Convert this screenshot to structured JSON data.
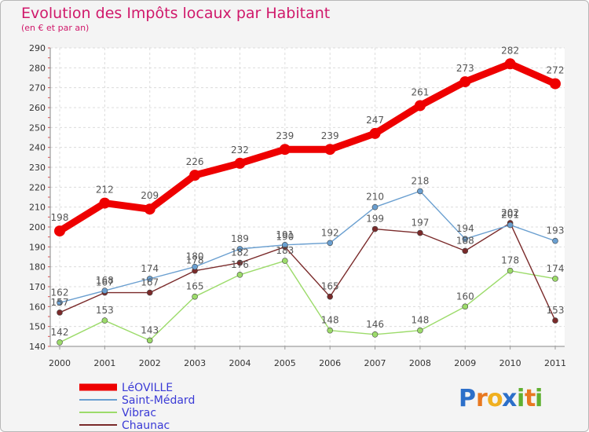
{
  "chart_data": {
    "type": "line",
    "title": "Evolution des Impôts locaux par Habitant",
    "subtitle": "(en € et par an)",
    "categories": [
      "2000",
      "2001",
      "2002",
      "2003",
      "2004",
      "2005",
      "2006",
      "2007",
      "2008",
      "2009",
      "2010",
      "2011"
    ],
    "ylim": [
      140,
      290
    ],
    "yticks": [
      140,
      150,
      160,
      170,
      180,
      190,
      200,
      210,
      220,
      230,
      240,
      250,
      260,
      270,
      280,
      290
    ],
    "grid": true,
    "legend_position": "bottom-left",
    "series": [
      {
        "name": "LéOVILLE",
        "color": "#ee0000",
        "values": [
          198,
          212,
          209,
          226,
          232,
          239,
          239,
          247,
          261,
          273,
          282,
          272
        ]
      },
      {
        "name": "Saint-Médard",
        "color": "#6a9fd0",
        "values": [
          162,
          168,
          174,
          180,
          189,
          191,
          192,
          210,
          218,
          194,
          201,
          193
        ]
      },
      {
        "name": "Vibrac",
        "color": "#9cdb6a",
        "values": [
          142,
          153,
          143,
          165,
          176,
          183,
          148,
          146,
          148,
          160,
          178,
          174
        ]
      },
      {
        "name": "Chaunac",
        "color": "#7a2a2a",
        "values": [
          157,
          167,
          167,
          178,
          182,
          190,
          165,
          199,
          197,
          188,
          202,
          153
        ]
      }
    ]
  },
  "legend_label_color": "#3a3ad6",
  "logo": {
    "letters": [
      "P",
      "r",
      "o",
      "x",
      "i",
      "t",
      "i"
    ],
    "colors": [
      "#2c6fc9",
      "#e87820",
      "#f0b020",
      "#2c6fc9",
      "#60b030",
      "#e87820",
      "#60b030"
    ]
  }
}
